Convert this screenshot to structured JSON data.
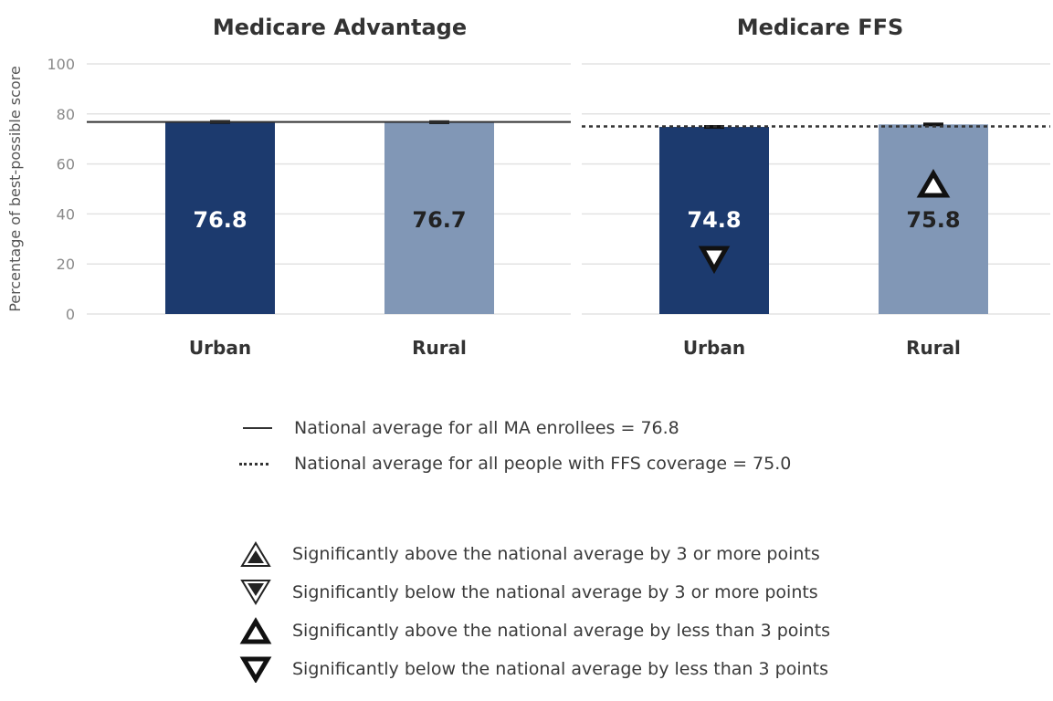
{
  "colors": {
    "urban_bar": "#1c3a6e",
    "rural_bar": "#8197b6",
    "reference_line": "#333333",
    "grid": "#e3e3e3",
    "axis_text": "#8a8a8a",
    "bar_label_light": "#ffffff",
    "bar_label_dark": "#222222"
  },
  "chart_data": [
    {
      "type": "bar",
      "title": "Medicare Advantage",
      "ylabel": "Percentage of best-possible score",
      "ylim": [
        0,
        100
      ],
      "yticks": [
        0,
        20,
        40,
        60,
        80,
        100
      ],
      "grid": true,
      "categories": [
        "Urban",
        "Rural"
      ],
      "values": [
        76.8,
        76.7
      ],
      "value_labels": [
        "76.8",
        "76.7"
      ],
      "reference_line": {
        "value": 76.8,
        "style": "solid"
      },
      "significance": [
        null,
        null
      ]
    },
    {
      "type": "bar",
      "title": "Medicare FFS",
      "ylabel": "Percentage of best-possible score",
      "ylim": [
        0,
        100
      ],
      "yticks": [
        0,
        20,
        40,
        60,
        80,
        100
      ],
      "grid": true,
      "categories": [
        "Urban",
        "Rural"
      ],
      "values": [
        74.8,
        75.8
      ],
      "value_labels": [
        "74.8",
        "75.8"
      ],
      "reference_line": {
        "value": 75.0,
        "style": "dotted"
      },
      "significance": [
        "below_lt3",
        "above_lt3"
      ]
    }
  ],
  "legend": {
    "lines": [
      {
        "style": "solid",
        "text": "National average for all MA enrollees = 76.8"
      },
      {
        "style": "dotted",
        "text": "National average for all people with FFS coverage = 75.0"
      }
    ],
    "symbols": [
      {
        "icon": "triangle-up-double-outline-icon",
        "text": "Significantly above the national average by 3 or more points"
      },
      {
        "icon": "triangle-down-double-outline-icon",
        "text": "Significantly below the national average by 3 or more points"
      },
      {
        "icon": "triangle-up-outline-icon",
        "text": "Significantly above the national average by less than 3 points"
      },
      {
        "icon": "triangle-down-outline-icon",
        "text": "Significantly below the national average by less than 3 points"
      }
    ]
  }
}
